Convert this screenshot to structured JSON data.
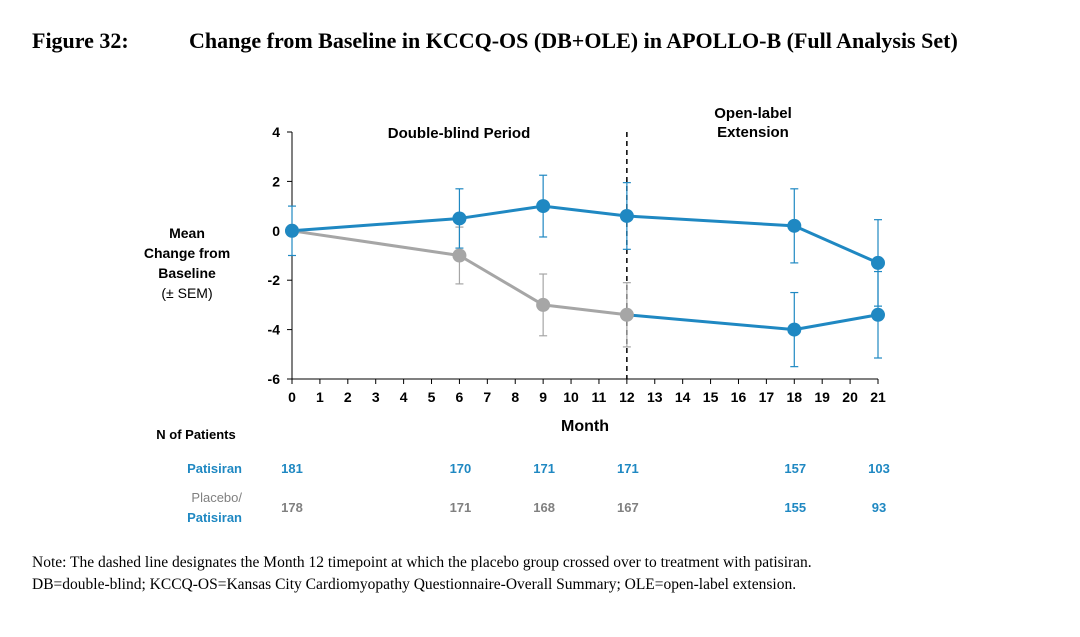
{
  "figure": {
    "number": "Figure 32:",
    "title": "Change from Baseline in KCCQ-OS (DB+OLE) in APOLLO-B (Full Analysis Set)"
  },
  "chart_data": {
    "type": "line",
    "y_axis_label_lines": [
      "Mean",
      "Change from",
      "Baseline",
      "(± SEM)"
    ],
    "x_axis_label": "Month",
    "x_ticks": [
      0,
      1,
      2,
      3,
      4,
      5,
      6,
      7,
      8,
      9,
      10,
      11,
      12,
      13,
      14,
      15,
      16,
      17,
      18,
      19,
      20,
      21
    ],
    "y_ticks": [
      4,
      2,
      0,
      -2,
      -4,
      -6
    ],
    "xlim": [
      0,
      21
    ],
    "ylim": [
      -6,
      4
    ],
    "grid": false,
    "period_labels": {
      "double_blind": [
        "Double-blind Period"
      ],
      "open_label": [
        "Open-label",
        "Extension"
      ]
    },
    "crossover_month": 12,
    "series": [
      {
        "name": "Patisiran",
        "color": "#1f88c2",
        "x": [
          0,
          6,
          9,
          12,
          18,
          21
        ],
        "y": [
          0,
          0.5,
          1.0,
          0.6,
          0.2,
          -1.3
        ],
        "sem": [
          1.0,
          1.2,
          1.25,
          1.35,
          1.5,
          1.75
        ]
      },
      {
        "name": "Placebo/Patisiran",
        "color_before": "#a6a6a6",
        "color_after": "#1f88c2",
        "x": [
          0,
          6,
          9,
          12,
          18,
          21
        ],
        "y": [
          0,
          -1.0,
          -3.0,
          -3.4,
          -4.0,
          -3.4
        ],
        "sem": [
          0,
          1.15,
          1.25,
          1.3,
          1.5,
          1.75
        ]
      }
    ],
    "patients": {
      "header": "N of Patients",
      "rows": [
        {
          "label_lines": [
            "Patisiran"
          ],
          "label_colors": [
            "#1f88c2"
          ],
          "months": [
            0,
            6,
            9,
            12,
            18,
            21
          ],
          "values": [
            "181",
            "170",
            "171",
            "171",
            "157",
            "103"
          ],
          "colors": [
            "#1f88c2",
            "#1f88c2",
            "#1f88c2",
            "#1f88c2",
            "#1f88c2",
            "#1f88c2"
          ]
        },
        {
          "label_lines": [
            "Placebo/",
            "Patisiran"
          ],
          "label_colors": [
            "#808080",
            "#1f88c2"
          ],
          "months": [
            0,
            6,
            9,
            12,
            18,
            21
          ],
          "values": [
            "178",
            "171",
            "168",
            "167",
            "155",
            "93"
          ],
          "colors": [
            "#808080",
            "#808080",
            "#808080",
            "#808080",
            "#1f88c2",
            "#1f88c2"
          ]
        }
      ]
    }
  },
  "note": [
    "Note: The dashed line designates the Month 12 timepoint at which the placebo group crossed over to treatment with patisiran.",
    "DB=double-blind; KCCQ-OS=Kansas City Cardiomyopathy Questionnaire-Overall Summary; OLE=open-label extension."
  ]
}
